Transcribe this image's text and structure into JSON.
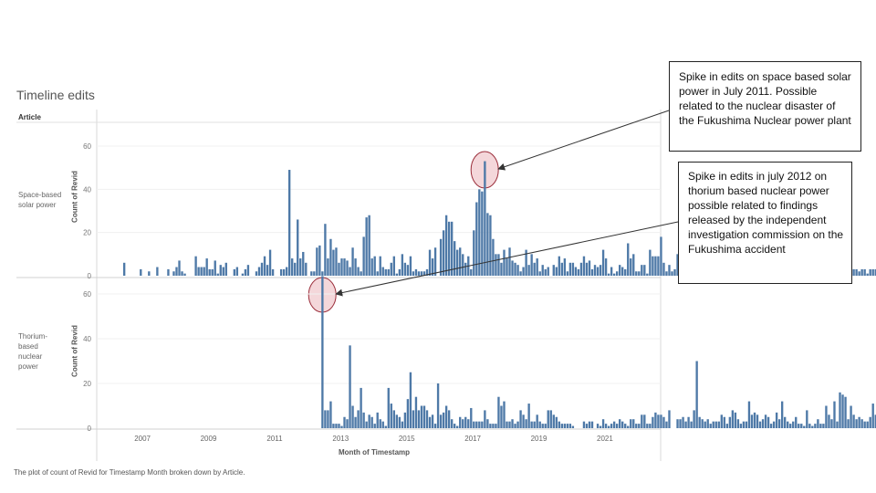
{
  "title": "Timeline edits",
  "article_header": "Article",
  "panels": [
    {
      "label": "Space-based solar power",
      "ylabel": "Count of Revid"
    },
    {
      "label": "Thorium-based nuclear power",
      "ylabel": "Count of Revid"
    }
  ],
  "xlabel": "Month of Timestamp",
  "caption": "The plot of count of Revid for Timestamp Month broken down by Article.",
  "annotations": [
    {
      "text": "Spike in edits on space based solar power in July 2011. Possible related to the nuclear disaster of the Fukushima Nuclear power plant"
    },
    {
      "text": "Spike in edits in july 2012 on thorium based nuclear power possible related to findings released by the independent investigation commission on the Fukushima accident"
    }
  ],
  "colors": {
    "bar": "#4e79a7",
    "highlight_fill": "#f2d0d3",
    "highlight_stroke": "#9b2d3a"
  },
  "chart_data": {
    "type": "bar",
    "x_ticks": [
      "2007",
      "2009",
      "2011",
      "2013",
      "2015",
      "2017",
      "2019",
      "2021"
    ],
    "ylim": [
      0,
      70
    ],
    "y_ticks": [
      0,
      20,
      40,
      60
    ],
    "xlabel": "Month of Timestamp",
    "ylabel": "Count of Revid",
    "series": [
      {
        "name": "Space-based solar power",
        "start": "2006-06",
        "values": [
          6,
          0,
          0,
          0,
          0,
          0,
          3,
          0,
          0,
          2,
          0,
          0,
          4,
          0,
          0,
          0,
          3,
          0,
          2,
          4,
          7,
          2,
          1,
          0,
          0,
          0,
          9,
          4,
          4,
          4,
          8,
          3,
          3,
          7,
          1,
          5,
          4,
          6,
          0,
          0,
          3,
          4,
          0,
          1,
          3,
          5,
          0,
          0,
          2,
          4,
          6,
          9,
          5,
          12,
          3,
          0,
          0,
          3,
          3,
          4,
          49,
          8,
          6,
          26,
          8,
          11,
          6,
          0,
          2,
          2,
          13,
          14,
          2,
          24,
          8,
          17,
          12,
          13,
          6,
          8,
          8,
          7,
          4,
          13,
          8,
          4,
          2,
          18,
          27,
          28,
          8,
          9,
          2,
          9,
          4,
          3,
          3,
          6,
          9,
          1,
          3,
          10,
          6,
          5,
          9,
          2,
          3,
          2,
          2,
          2,
          3,
          12,
          8,
          13,
          0,
          17,
          21,
          28,
          25,
          25,
          16,
          12,
          13,
          10,
          6,
          9,
          3,
          21,
          34,
          40,
          39,
          53,
          29,
          28,
          17,
          10,
          10,
          6,
          12,
          8,
          13,
          7,
          6,
          5,
          2,
          4,
          12,
          5,
          10,
          6,
          8,
          2,
          5,
          3,
          4,
          0,
          5,
          4,
          9,
          6,
          8,
          2,
          6,
          6,
          4,
          3,
          6,
          9,
          6,
          7,
          3,
          5,
          4,
          5,
          12,
          8,
          1,
          4,
          1,
          2,
          5,
          4,
          3,
          15,
          8,
          10,
          2,
          2,
          5,
          5,
          1,
          12,
          9,
          9,
          9,
          18,
          6,
          2,
          5,
          2,
          3,
          10,
          12,
          5,
          3,
          6,
          2,
          8,
          10,
          9,
          6,
          6,
          2,
          4,
          3,
          4,
          3,
          5,
          2,
          2,
          5,
          4,
          3,
          2,
          5,
          3,
          5,
          5,
          4,
          5,
          7,
          0,
          2,
          5,
          8,
          6,
          3,
          1,
          3,
          0,
          1,
          5,
          7,
          2,
          0,
          4,
          4,
          2,
          3,
          4,
          3,
          3,
          3,
          2,
          0,
          27,
          8,
          5,
          4,
          0,
          2,
          0,
          5,
          3,
          3,
          3,
          3,
          2,
          3,
          3,
          1,
          3,
          3,
          3,
          7,
          6,
          5,
          5,
          37,
          5,
          1,
          3,
          2,
          0,
          6,
          4,
          8,
          2,
          2,
          2,
          2,
          5,
          3,
          0,
          5,
          1,
          0,
          3,
          1,
          4,
          2,
          4,
          14,
          6,
          3,
          3,
          2,
          4,
          1,
          0,
          3,
          0,
          2,
          4,
          7,
          5,
          4,
          4,
          7,
          1,
          3,
          6,
          8,
          1,
          3,
          1,
          2,
          11,
          8,
          9,
          4,
          7,
          5,
          12,
          12,
          13,
          7,
          1,
          8,
          13,
          14,
          8,
          8,
          9,
          9,
          7,
          7,
          11,
          2,
          5,
          3,
          8,
          5,
          4,
          4,
          5,
          4,
          2,
          3,
          0,
          2,
          3,
          0,
          2,
          4,
          3,
          7,
          6,
          5,
          6,
          7,
          7,
          3,
          3,
          8,
          3,
          8,
          6,
          7,
          6,
          8,
          0,
          2,
          3,
          8,
          4,
          8,
          5,
          8,
          5,
          3,
          3,
          7,
          7,
          7
        ]
      },
      {
        "name": "Thorium-based nuclear power",
        "start": "2012-06",
        "values": [
          68,
          8,
          8,
          12,
          2,
          2,
          2,
          1,
          5,
          4,
          37,
          10,
          5,
          8,
          18,
          7,
          3,
          6,
          5,
          2,
          7,
          4,
          3,
          1,
          18,
          11,
          8,
          6,
          5,
          3,
          7,
          13,
          25,
          8,
          14,
          8,
          10,
          10,
          8,
          5,
          6,
          2,
          20,
          6,
          7,
          10,
          8,
          4,
          2,
          1,
          5,
          4,
          5,
          4,
          9,
          3,
          3,
          3,
          3,
          8,
          4,
          2,
          2,
          2,
          14,
          10,
          12,
          3,
          3,
          4,
          2,
          3,
          8,
          6,
          4,
          11,
          3,
          3,
          6,
          3,
          2,
          2,
          8,
          8,
          6,
          5,
          3,
          2,
          2,
          2,
          2,
          1,
          0,
          0,
          0,
          3,
          2,
          3,
          3,
          0,
          2,
          1,
          4,
          2,
          1,
          2,
          3,
          2,
          4,
          3,
          2,
          1,
          4,
          4,
          2,
          2,
          6,
          6,
          2,
          2,
          5,
          7,
          6,
          6,
          5,
          3,
          8,
          0,
          0,
          4,
          4,
          5,
          3,
          5,
          3,
          8,
          30,
          5,
          4,
          3,
          4,
          2,
          3,
          3,
          3,
          6,
          5,
          2,
          5,
          8,
          7,
          4,
          2,
          3,
          3,
          12,
          6,
          7,
          6,
          3,
          4,
          6,
          5,
          2,
          3,
          7,
          4,
          12,
          5,
          3,
          2,
          3,
          5,
          2,
          2,
          1,
          8,
          2,
          1,
          2,
          4,
          2,
          2,
          10,
          6,
          4,
          12,
          3,
          16,
          15,
          14,
          4,
          10,
          6,
          4,
          5,
          4,
          3,
          3,
          5,
          11,
          6,
          5
        ]
      }
    ]
  }
}
